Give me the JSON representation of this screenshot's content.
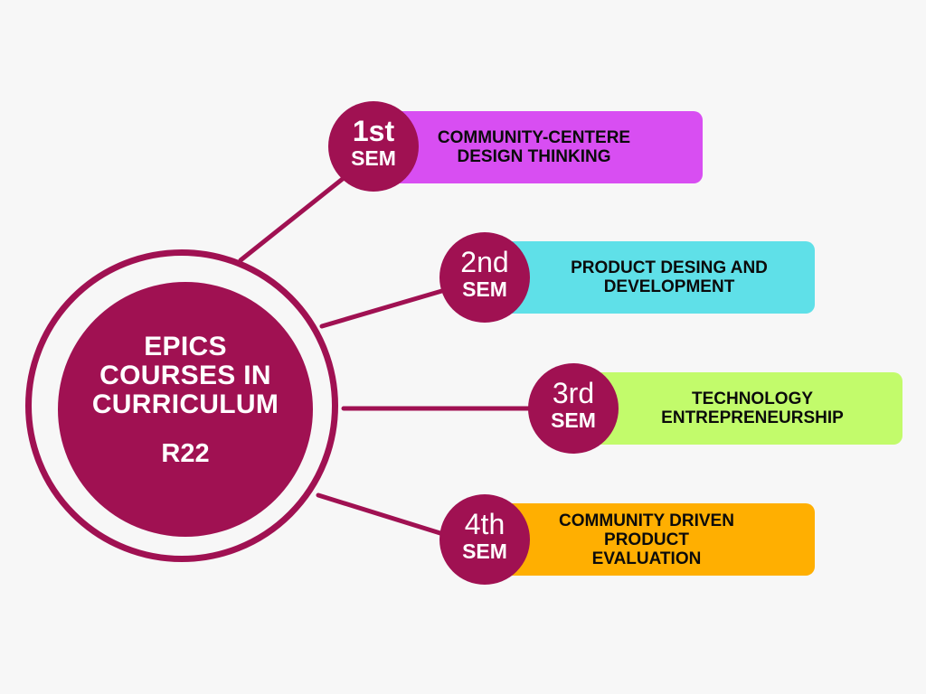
{
  "hub": {
    "title": "EPICS\nCOURSES IN\nCURRICULUM",
    "code": "R22"
  },
  "semesters": [
    {
      "num": "1st",
      "unit": "SEM",
      "course": "COMMUNITY-CENTERE\nDESIGN THINKING",
      "color": "#d84ef2"
    },
    {
      "num": "2nd",
      "unit": "SEM",
      "course": "PRODUCT DESING AND\nDEVELOPMENT",
      "color": "#5fe0e8"
    },
    {
      "num": "3rd",
      "unit": "SEM",
      "course": "TECHNOLOGY\nENTREPRENEURSHIP",
      "color": "#c2fb6b"
    },
    {
      "num": "4th",
      "unit": "SEM",
      "course": "COMMUNITY DRIVEN\nPRODUCT\nEVALUATION",
      "color": "#ffaf01"
    }
  ],
  "colors": {
    "accent": "#a01152",
    "background": "#f7f7f7"
  }
}
